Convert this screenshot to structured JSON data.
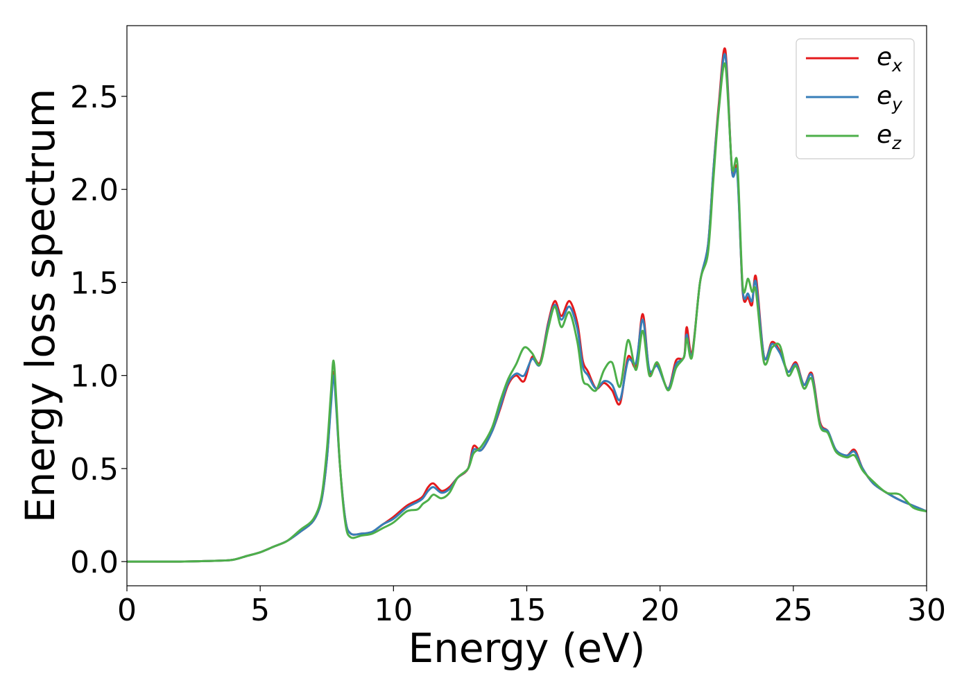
{
  "chart_data": {
    "type": "line",
    "xlabel": "Energy (eV)",
    "ylabel": "Energy loss spectrum",
    "xlim": [
      0,
      30
    ],
    "ylim": [
      -0.13,
      2.88
    ],
    "xticks": [
      0,
      5,
      10,
      15,
      20,
      25,
      30
    ],
    "yticks": [
      0.0,
      0.5,
      1.0,
      1.5,
      2.0,
      2.5
    ],
    "x_tick_labels": [
      "0",
      "5",
      "10",
      "15",
      "20",
      "25",
      "30"
    ],
    "y_tick_labels": [
      "0.0",
      "0.5",
      "1.0",
      "1.5",
      "2.0",
      "2.5"
    ],
    "grid": false,
    "legend_position": "top-right",
    "series": [
      {
        "name": "e_x",
        "label_base": "e",
        "label_sub": "x",
        "color": "#e41a1c",
        "points": [
          [
            0,
            0
          ],
          [
            2,
            0
          ],
          [
            3.5,
            0.005
          ],
          [
            4,
            0.01
          ],
          [
            4.5,
            0.03
          ],
          [
            5,
            0.05
          ],
          [
            5.5,
            0.08
          ],
          [
            6,
            0.11
          ],
          [
            6.5,
            0.16
          ],
          [
            7,
            0.22
          ],
          [
            7.3,
            0.33
          ],
          [
            7.5,
            0.55
          ],
          [
            7.65,
            0.85
          ],
          [
            7.75,
            1.02
          ],
          [
            7.85,
            0.85
          ],
          [
            8,
            0.5
          ],
          [
            8.2,
            0.22
          ],
          [
            8.4,
            0.15
          ],
          [
            8.8,
            0.15
          ],
          [
            9.2,
            0.16
          ],
          [
            9.6,
            0.2
          ],
          [
            10,
            0.24
          ],
          [
            10.5,
            0.3
          ],
          [
            10.9,
            0.33
          ],
          [
            11.1,
            0.35
          ],
          [
            11.3,
            0.4
          ],
          [
            11.5,
            0.42
          ],
          [
            11.8,
            0.38
          ],
          [
            12.1,
            0.4
          ],
          [
            12.4,
            0.45
          ],
          [
            12.8,
            0.5
          ],
          [
            13,
            0.62
          ],
          [
            13.3,
            0.6
          ],
          [
            13.7,
            0.7
          ],
          [
            14,
            0.82
          ],
          [
            14.3,
            0.95
          ],
          [
            14.6,
            1.0
          ],
          [
            14.9,
            0.97
          ],
          [
            15.2,
            1.1
          ],
          [
            15.5,
            1.07
          ],
          [
            15.8,
            1.28
          ],
          [
            16.05,
            1.4
          ],
          [
            16.3,
            1.32
          ],
          [
            16.6,
            1.4
          ],
          [
            16.9,
            1.28
          ],
          [
            17.1,
            1.08
          ],
          [
            17.3,
            1.02
          ],
          [
            17.6,
            0.93
          ],
          [
            17.9,
            0.96
          ],
          [
            18.2,
            0.92
          ],
          [
            18.5,
            0.85
          ],
          [
            18.8,
            1.1
          ],
          [
            19.1,
            1.05
          ],
          [
            19.35,
            1.33
          ],
          [
            19.6,
            1.02
          ],
          [
            19.9,
            1.06
          ],
          [
            20.3,
            0.93
          ],
          [
            20.6,
            1.08
          ],
          [
            20.9,
            1.1
          ],
          [
            21.0,
            1.26
          ],
          [
            21.2,
            1.12
          ],
          [
            21.5,
            1.5
          ],
          [
            21.8,
            1.7
          ],
          [
            22.0,
            2.1
          ],
          [
            22.2,
            2.45
          ],
          [
            22.45,
            2.75
          ],
          [
            22.7,
            2.1
          ],
          [
            22.9,
            2.1
          ],
          [
            23.1,
            1.45
          ],
          [
            23.3,
            1.42
          ],
          [
            23.45,
            1.38
          ],
          [
            23.6,
            1.53
          ],
          [
            23.9,
            1.1
          ],
          [
            24.2,
            1.18
          ],
          [
            24.5,
            1.13
          ],
          [
            24.8,
            1.02
          ],
          [
            25.1,
            1.07
          ],
          [
            25.4,
            0.95
          ],
          [
            25.7,
            1.01
          ],
          [
            26.0,
            0.75
          ],
          [
            26.3,
            0.7
          ],
          [
            26.6,
            0.6
          ],
          [
            27.0,
            0.57
          ],
          [
            27.3,
            0.6
          ],
          [
            27.6,
            0.5
          ],
          [
            28.0,
            0.42
          ],
          [
            28.5,
            0.37
          ],
          [
            29.0,
            0.33
          ],
          [
            29.5,
            0.3
          ],
          [
            30,
            0.27
          ]
        ]
      },
      {
        "name": "e_y",
        "label_base": "e",
        "label_sub": "y",
        "color": "#377eb8",
        "points": [
          [
            0,
            0
          ],
          [
            2,
            0
          ],
          [
            3.5,
            0.005
          ],
          [
            4,
            0.01
          ],
          [
            4.5,
            0.03
          ],
          [
            5,
            0.05
          ],
          [
            5.5,
            0.08
          ],
          [
            6,
            0.11
          ],
          [
            6.5,
            0.16
          ],
          [
            7,
            0.22
          ],
          [
            7.3,
            0.33
          ],
          [
            7.5,
            0.55
          ],
          [
            7.65,
            0.83
          ],
          [
            7.75,
            1.0
          ],
          [
            7.85,
            0.83
          ],
          [
            8,
            0.5
          ],
          [
            8.2,
            0.22
          ],
          [
            8.4,
            0.15
          ],
          [
            8.8,
            0.15
          ],
          [
            9.2,
            0.16
          ],
          [
            9.6,
            0.2
          ],
          [
            10,
            0.23
          ],
          [
            10.5,
            0.29
          ],
          [
            10.9,
            0.32
          ],
          [
            11.1,
            0.34
          ],
          [
            11.3,
            0.38
          ],
          [
            11.5,
            0.4
          ],
          [
            11.8,
            0.37
          ],
          [
            12.1,
            0.39
          ],
          [
            12.4,
            0.45
          ],
          [
            12.8,
            0.5
          ],
          [
            13,
            0.6
          ],
          [
            13.3,
            0.6
          ],
          [
            13.7,
            0.7
          ],
          [
            14,
            0.83
          ],
          [
            14.3,
            0.96
          ],
          [
            14.6,
            1.01
          ],
          [
            14.9,
            1.0
          ],
          [
            15.2,
            1.09
          ],
          [
            15.5,
            1.06
          ],
          [
            15.8,
            1.27
          ],
          [
            16.05,
            1.38
          ],
          [
            16.3,
            1.3
          ],
          [
            16.6,
            1.37
          ],
          [
            16.9,
            1.25
          ],
          [
            17.1,
            1.05
          ],
          [
            17.3,
            1.0
          ],
          [
            17.6,
            0.93
          ],
          [
            17.9,
            0.97
          ],
          [
            18.2,
            0.95
          ],
          [
            18.5,
            0.87
          ],
          [
            18.8,
            1.08
          ],
          [
            19.1,
            1.07
          ],
          [
            19.35,
            1.3
          ],
          [
            19.6,
            1.03
          ],
          [
            19.9,
            1.05
          ],
          [
            20.3,
            0.93
          ],
          [
            20.6,
            1.06
          ],
          [
            20.9,
            1.1
          ],
          [
            21.0,
            1.22
          ],
          [
            21.2,
            1.11
          ],
          [
            21.5,
            1.5
          ],
          [
            21.8,
            1.7
          ],
          [
            22.0,
            2.1
          ],
          [
            22.2,
            2.43
          ],
          [
            22.45,
            2.72
          ],
          [
            22.7,
            2.1
          ],
          [
            22.9,
            2.08
          ],
          [
            23.1,
            1.46
          ],
          [
            23.3,
            1.44
          ],
          [
            23.45,
            1.4
          ],
          [
            23.6,
            1.5
          ],
          [
            23.9,
            1.1
          ],
          [
            24.2,
            1.17
          ],
          [
            24.5,
            1.12
          ],
          [
            24.8,
            1.02
          ],
          [
            25.1,
            1.06
          ],
          [
            25.4,
            0.95
          ],
          [
            25.7,
            1.0
          ],
          [
            26.0,
            0.74
          ],
          [
            26.3,
            0.7
          ],
          [
            26.6,
            0.6
          ],
          [
            27.0,
            0.57
          ],
          [
            27.3,
            0.59
          ],
          [
            27.6,
            0.5
          ],
          [
            28.0,
            0.42
          ],
          [
            28.5,
            0.37
          ],
          [
            29.0,
            0.33
          ],
          [
            29.5,
            0.3
          ],
          [
            30,
            0.27
          ]
        ]
      },
      {
        "name": "e_z",
        "label_base": "e",
        "label_sub": "z",
        "color": "#4daf4a",
        "points": [
          [
            0,
            0
          ],
          [
            2,
            0
          ],
          [
            3.5,
            0.005
          ],
          [
            4,
            0.01
          ],
          [
            4.5,
            0.03
          ],
          [
            5,
            0.05
          ],
          [
            5.5,
            0.08
          ],
          [
            6,
            0.11
          ],
          [
            6.5,
            0.17
          ],
          [
            7,
            0.23
          ],
          [
            7.3,
            0.35
          ],
          [
            7.5,
            0.6
          ],
          [
            7.65,
            0.9
          ],
          [
            7.75,
            1.08
          ],
          [
            7.85,
            0.88
          ],
          [
            8,
            0.5
          ],
          [
            8.2,
            0.2
          ],
          [
            8.4,
            0.13
          ],
          [
            8.8,
            0.14
          ],
          [
            9.2,
            0.15
          ],
          [
            9.6,
            0.18
          ],
          [
            10,
            0.21
          ],
          [
            10.5,
            0.27
          ],
          [
            10.9,
            0.28
          ],
          [
            11.1,
            0.31
          ],
          [
            11.3,
            0.33
          ],
          [
            11.5,
            0.36
          ],
          [
            11.8,
            0.34
          ],
          [
            12.1,
            0.37
          ],
          [
            12.4,
            0.45
          ],
          [
            12.8,
            0.5
          ],
          [
            13,
            0.58
          ],
          [
            13.3,
            0.62
          ],
          [
            13.7,
            0.72
          ],
          [
            14,
            0.86
          ],
          [
            14.3,
            0.98
          ],
          [
            14.6,
            1.06
          ],
          [
            14.9,
            1.15
          ],
          [
            15.2,
            1.12
          ],
          [
            15.5,
            1.06
          ],
          [
            15.8,
            1.25
          ],
          [
            16.05,
            1.37
          ],
          [
            16.3,
            1.26
          ],
          [
            16.6,
            1.34
          ],
          [
            16.9,
            1.18
          ],
          [
            17.1,
            0.98
          ],
          [
            17.3,
            0.95
          ],
          [
            17.6,
            0.92
          ],
          [
            17.9,
            1.03
          ],
          [
            18.2,
            1.07
          ],
          [
            18.5,
            0.94
          ],
          [
            18.8,
            1.19
          ],
          [
            19.1,
            1.03
          ],
          [
            19.35,
            1.24
          ],
          [
            19.6,
            1.0
          ],
          [
            19.9,
            1.07
          ],
          [
            20.3,
            0.92
          ],
          [
            20.6,
            1.04
          ],
          [
            20.9,
            1.1
          ],
          [
            21.0,
            1.2
          ],
          [
            21.2,
            1.1
          ],
          [
            21.5,
            1.5
          ],
          [
            21.8,
            1.66
          ],
          [
            22.0,
            2.05
          ],
          [
            22.2,
            2.42
          ],
          [
            22.45,
            2.67
          ],
          [
            22.7,
            2.12
          ],
          [
            22.9,
            2.14
          ],
          [
            23.1,
            1.48
          ],
          [
            23.3,
            1.52
          ],
          [
            23.45,
            1.45
          ],
          [
            23.6,
            1.45
          ],
          [
            23.9,
            1.07
          ],
          [
            24.2,
            1.15
          ],
          [
            24.5,
            1.16
          ],
          [
            24.8,
            1.0
          ],
          [
            25.1,
            1.05
          ],
          [
            25.4,
            0.93
          ],
          [
            25.7,
            0.98
          ],
          [
            26.0,
            0.73
          ],
          [
            26.3,
            0.69
          ],
          [
            26.6,
            0.59
          ],
          [
            27.0,
            0.56
          ],
          [
            27.3,
            0.57
          ],
          [
            27.6,
            0.49
          ],
          [
            28.0,
            0.43
          ],
          [
            28.5,
            0.37
          ],
          [
            29.0,
            0.36
          ],
          [
            29.5,
            0.29
          ],
          [
            30,
            0.27
          ]
        ]
      }
    ]
  }
}
